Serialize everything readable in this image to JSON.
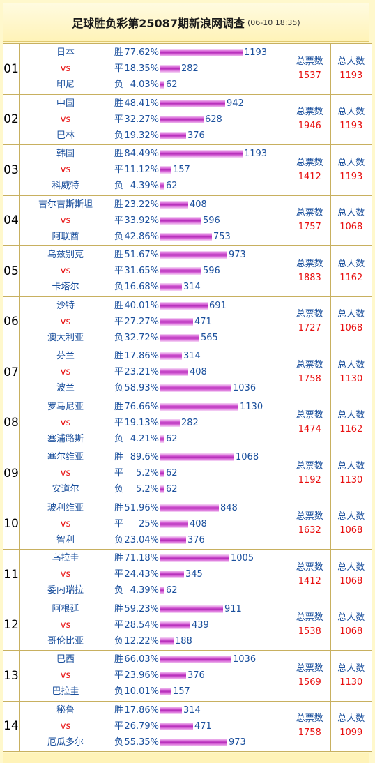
{
  "header": {
    "title": "足球胜负彩第25087期新浪网调查",
    "time": "(06-10 18:35)"
  },
  "labels": {
    "win": "胜",
    "draw": "平",
    "lose": "负",
    "vs": "vs",
    "total_votes": "总票数",
    "total_people": "总人数"
  },
  "bar_scale_max": 1193,
  "matches": [
    {
      "no": "01",
      "home": "日本",
      "away": "印尼",
      "win_pct": "77.62%",
      "win_count": "1193",
      "win_level": 1193,
      "draw_pct": "18.35%",
      "draw_count": "282",
      "draw_level": 282,
      "lose_pct": "4.03%",
      "lose_count": "62",
      "lose_level": 62,
      "total_votes": "1537",
      "total_people": "1193"
    },
    {
      "no": "02",
      "home": "中国",
      "away": "巴林",
      "win_pct": "48.41%",
      "win_count": "942",
      "win_level": 942,
      "draw_pct": "32.27%",
      "draw_count": "628",
      "draw_level": 628,
      "lose_pct": "19.32%",
      "lose_count": "376",
      "lose_level": 376,
      "total_votes": "1946",
      "total_people": "1193"
    },
    {
      "no": "03",
      "home": "韩国",
      "away": "科威特",
      "win_pct": "84.49%",
      "win_count": "1193",
      "win_level": 1193,
      "draw_pct": "11.12%",
      "draw_count": "157",
      "draw_level": 157,
      "lose_pct": "4.39%",
      "lose_count": "62",
      "lose_level": 62,
      "total_votes": "1412",
      "total_people": "1193"
    },
    {
      "no": "04",
      "home": "吉尔吉斯斯坦",
      "away": "阿联酋",
      "win_pct": "23.22%",
      "win_count": "408",
      "win_level": 408,
      "draw_pct": "33.92%",
      "draw_count": "596",
      "draw_level": 596,
      "lose_pct": "42.86%",
      "lose_count": "753",
      "lose_level": 753,
      "total_votes": "1757",
      "total_people": "1068"
    },
    {
      "no": "05",
      "home": "乌兹别克",
      "away": "卡塔尔",
      "win_pct": "51.67%",
      "win_count": "973",
      "win_level": 973,
      "draw_pct": "31.65%",
      "draw_count": "596",
      "draw_level": 596,
      "lose_pct": "16.68%",
      "lose_count": "314",
      "lose_level": 314,
      "total_votes": "1883",
      "total_people": "1162"
    },
    {
      "no": "06",
      "home": "沙特",
      "away": "澳大利亚",
      "win_pct": "40.01%",
      "win_count": "691",
      "win_level": 691,
      "draw_pct": "27.27%",
      "draw_count": "471",
      "draw_level": 471,
      "lose_pct": "32.72%",
      "lose_count": "565",
      "lose_level": 565,
      "total_votes": "1727",
      "total_people": "1068"
    },
    {
      "no": "07",
      "home": "芬兰",
      "away": "波兰",
      "win_pct": "17.86%",
      "win_count": "314",
      "win_level": 314,
      "draw_pct": "23.21%",
      "draw_count": "408",
      "draw_level": 408,
      "lose_pct": "58.93%",
      "lose_count": "1036",
      "lose_level": 1036,
      "total_votes": "1758",
      "total_people": "1130"
    },
    {
      "no": "08",
      "home": "罗马尼亚",
      "away": "塞浦路斯",
      "win_pct": "76.66%",
      "win_count": "1130",
      "win_level": 1130,
      "draw_pct": "19.13%",
      "draw_count": "282",
      "draw_level": 282,
      "lose_pct": "4.21%",
      "lose_count": "62",
      "lose_level": 62,
      "total_votes": "1474",
      "total_people": "1162"
    },
    {
      "no": "09",
      "home": "塞尔维亚",
      "away": "安道尔",
      "win_pct": "89.6%",
      "win_count": "1068",
      "win_level": 1068,
      "draw_pct": "5.2%",
      "draw_count": "62",
      "draw_level": 62,
      "lose_pct": "5.2%",
      "lose_count": "62",
      "lose_level": 62,
      "total_votes": "1192",
      "total_people": "1130"
    },
    {
      "no": "10",
      "home": "玻利维亚",
      "away": "智利",
      "win_pct": "51.96%",
      "win_count": "848",
      "win_level": 848,
      "draw_pct": "25%",
      "draw_count": "408",
      "draw_level": 408,
      "lose_pct": "23.04%",
      "lose_count": "376",
      "lose_level": 376,
      "total_votes": "1632",
      "total_people": "1068"
    },
    {
      "no": "11",
      "home": "乌拉圭",
      "away": "委内瑞拉",
      "win_pct": "71.18%",
      "win_count": "1005",
      "win_level": 1005,
      "draw_pct": "24.43%",
      "draw_count": "345",
      "draw_level": 345,
      "lose_pct": "4.39%",
      "lose_count": "62",
      "lose_level": 62,
      "total_votes": "1412",
      "total_people": "1068"
    },
    {
      "no": "12",
      "home": "阿根廷",
      "away": "哥伦比亚",
      "win_pct": "59.23%",
      "win_count": "911",
      "win_level": 911,
      "draw_pct": "28.54%",
      "draw_count": "439",
      "draw_level": 439,
      "lose_pct": "12.22%",
      "lose_count": "188",
      "lose_level": 188,
      "total_votes": "1538",
      "total_people": "1068"
    },
    {
      "no": "13",
      "home": "巴西",
      "away": "巴拉圭",
      "win_pct": "66.03%",
      "win_count": "1036",
      "win_level": 1036,
      "draw_pct": "23.96%",
      "draw_count": "376",
      "draw_level": 376,
      "lose_pct": "10.01%",
      "lose_count": "157",
      "lose_level": 157,
      "total_votes": "1569",
      "total_people": "1130"
    },
    {
      "no": "14",
      "home": "秘鲁",
      "away": "厄瓜多尔",
      "win_pct": "17.86%",
      "win_count": "314",
      "win_level": 314,
      "draw_pct": "26.79%",
      "draw_count": "471",
      "draw_level": 471,
      "lose_pct": "55.35%",
      "lose_count": "973",
      "lose_level": 973,
      "total_votes": "1758",
      "total_people": "1099"
    }
  ]
}
